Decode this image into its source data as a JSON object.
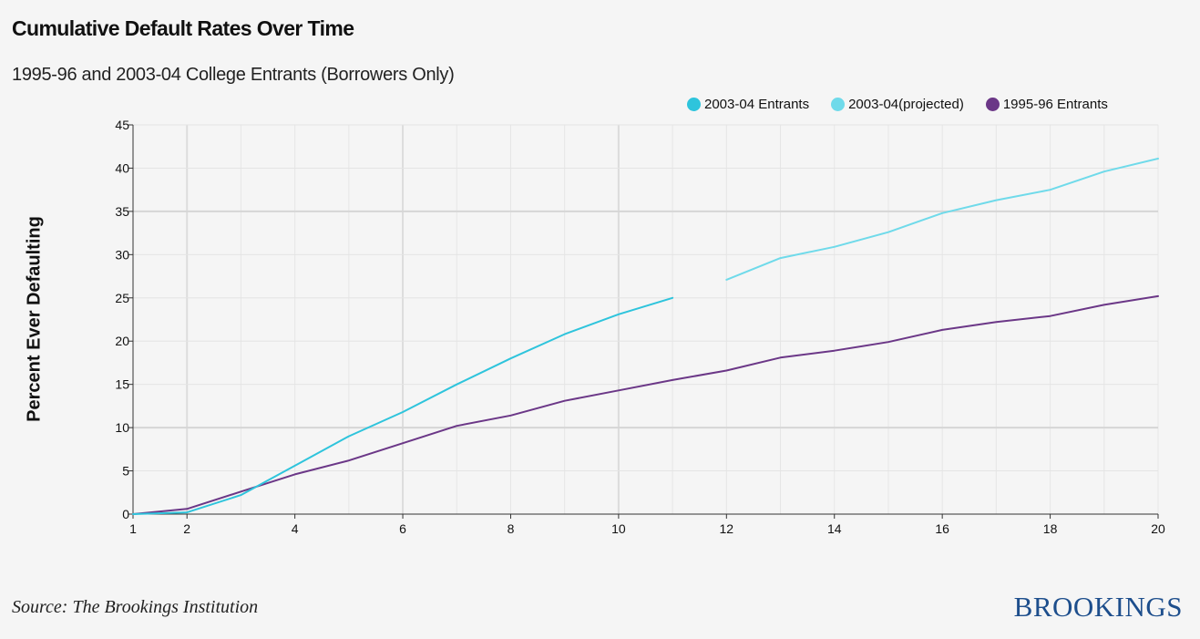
{
  "title": "Cumulative Default Rates Over Time",
  "subtitle": "1995-96 and 2003-04 College Entrants (Borrowers Only)",
  "source": "Source: The Brookings Institution",
  "logo_text": "BROOKINGS",
  "chart_data": {
    "type": "line",
    "ylabel": "Percent Ever Defaulting",
    "xlabel": "",
    "xlim": [
      1,
      20
    ],
    "ylim": [
      0,
      45
    ],
    "x_ticks": [
      1,
      2,
      4,
      6,
      8,
      10,
      12,
      14,
      16,
      18,
      20
    ],
    "y_ticks": [
      0,
      5,
      10,
      15,
      20,
      25,
      30,
      35,
      40,
      45
    ],
    "grid": true,
    "legend_position": "top-right",
    "series": [
      {
        "name": "2003-04 Entrants",
        "color": "#2ec4dc",
        "x": [
          1,
          2,
          3,
          4,
          5,
          6,
          7,
          8,
          9,
          10,
          11
        ],
        "values": [
          0,
          0.2,
          2.2,
          5.6,
          9.0,
          11.8,
          15.0,
          18.0,
          20.8,
          23.1,
          25.0
        ]
      },
      {
        "name": "2003-04(projected)",
        "color": "#6fdaea",
        "x": [
          12,
          13,
          14,
          15,
          16,
          17,
          18,
          19,
          20
        ],
        "values": [
          27.1,
          29.6,
          30.9,
          32.6,
          34.8,
          36.3,
          37.5,
          39.6,
          41.1
        ]
      },
      {
        "name": "1995-96 Entrants",
        "color": "#6b3787",
        "x": [
          1,
          2,
          3,
          4,
          5,
          6,
          7,
          8,
          9,
          10,
          11,
          12,
          13,
          14,
          15,
          16,
          17,
          18,
          19,
          20
        ],
        "values": [
          0,
          0.6,
          2.6,
          4.6,
          6.2,
          8.2,
          10.2,
          11.4,
          13.1,
          14.3,
          15.5,
          16.6,
          18.1,
          18.9,
          19.9,
          21.3,
          22.2,
          22.9,
          24.2,
          25.2
        ]
      }
    ]
  }
}
